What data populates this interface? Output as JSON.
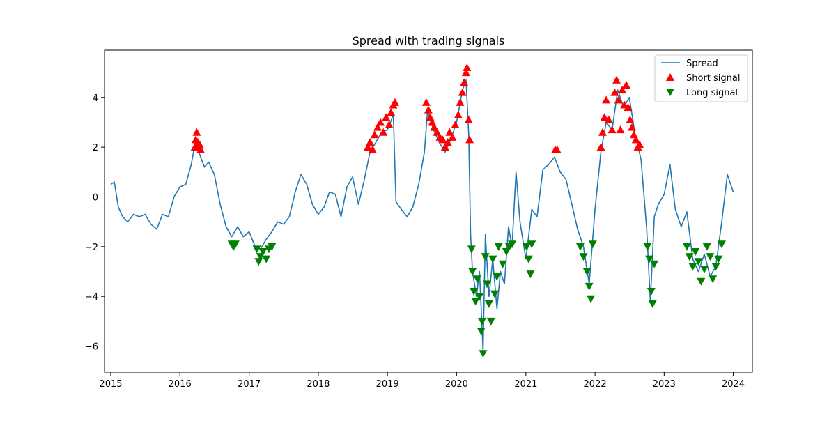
{
  "chart_data": {
    "type": "line",
    "title": "Spread with trading signals",
    "xlabel": "",
    "ylabel": "",
    "xlim": [
      "2014-11-29",
      "2024-04-11"
    ],
    "ylim": [
      -7.05,
      5.9
    ],
    "x_ticks": [
      "2015",
      "2016",
      "2017",
      "2018",
      "2019",
      "2020",
      "2021",
      "2022",
      "2023",
      "2024"
    ],
    "y_ticks": [
      -6,
      -4,
      -2,
      0,
      2,
      4
    ],
    "y_tick_labels": [
      "−6",
      "−4",
      "−2",
      "0",
      "2",
      "4"
    ],
    "grid": false,
    "legend_position": "top-right",
    "series": [
      {
        "name": "Spread",
        "color": "#1f77b4",
        "points": [
          [
            "2015-01-01",
            0.5
          ],
          [
            "2015-01-20",
            0.6
          ],
          [
            "2015-02-10",
            -0.4
          ],
          [
            "2015-03-05",
            -0.8
          ],
          [
            "2015-04-01",
            -1.0
          ],
          [
            "2015-05-01",
            -0.7
          ],
          [
            "2015-06-01",
            -0.8
          ],
          [
            "2015-07-01",
            -0.7
          ],
          [
            "2015-08-01",
            -1.1
          ],
          [
            "2015-09-01",
            -1.3
          ],
          [
            "2015-10-01",
            -0.7
          ],
          [
            "2015-11-01",
            -0.8
          ],
          [
            "2015-12-01",
            0.0
          ],
          [
            "2016-01-01",
            0.4
          ],
          [
            "2016-02-01",
            0.5
          ],
          [
            "2016-03-01",
            1.3
          ],
          [
            "2016-03-25",
            2.3
          ],
          [
            "2016-04-15",
            1.7
          ],
          [
            "2016-05-10",
            1.2
          ],
          [
            "2016-06-01",
            1.4
          ],
          [
            "2016-07-01",
            0.9
          ],
          [
            "2016-08-01",
            -0.3
          ],
          [
            "2016-09-01",
            -1.2
          ],
          [
            "2016-10-01",
            -1.6
          ],
          [
            "2016-11-01",
            -1.2
          ],
          [
            "2016-12-01",
            -1.6
          ],
          [
            "2017-01-01",
            -1.4
          ],
          [
            "2017-02-01",
            -2.0
          ],
          [
            "2017-03-01",
            -2.1
          ],
          [
            "2017-04-01",
            -1.7
          ],
          [
            "2017-05-01",
            -1.4
          ],
          [
            "2017-06-01",
            -1.0
          ],
          [
            "2017-07-01",
            -1.1
          ],
          [
            "2017-08-01",
            -0.8
          ],
          [
            "2017-09-01",
            0.2
          ],
          [
            "2017-10-01",
            0.9
          ],
          [
            "2017-11-01",
            0.5
          ],
          [
            "2017-12-01",
            -0.3
          ],
          [
            "2018-01-01",
            -0.7
          ],
          [
            "2018-02-01",
            -0.4
          ],
          [
            "2018-03-01",
            0.2
          ],
          [
            "2018-04-01",
            0.1
          ],
          [
            "2018-05-01",
            -0.8
          ],
          [
            "2018-06-01",
            0.4
          ],
          [
            "2018-07-01",
            0.8
          ],
          [
            "2018-08-01",
            -0.3
          ],
          [
            "2018-09-01",
            0.7
          ],
          [
            "2018-10-01",
            1.8
          ],
          [
            "2018-11-01",
            2.2
          ],
          [
            "2018-12-01",
            2.6
          ],
          [
            "2019-01-01",
            2.7
          ],
          [
            "2019-02-01",
            3.3
          ],
          [
            "2019-02-15",
            -0.2
          ],
          [
            "2019-03-15",
            -0.5
          ],
          [
            "2019-04-15",
            -0.8
          ],
          [
            "2019-05-15",
            -0.4
          ],
          [
            "2019-06-15",
            0.5
          ],
          [
            "2019-07-15",
            1.8
          ],
          [
            "2019-08-01",
            3.5
          ],
          [
            "2019-09-01",
            2.7
          ],
          [
            "2019-10-01",
            2.2
          ],
          [
            "2019-11-01",
            1.8
          ],
          [
            "2019-12-01",
            2.3
          ],
          [
            "2020-01-01",
            3.0
          ],
          [
            "2020-02-01",
            4.3
          ],
          [
            "2020-02-20",
            4.7
          ],
          [
            "2020-03-05",
            2.5
          ],
          [
            "2020-03-15",
            -1.5
          ],
          [
            "2020-03-25",
            -3.0
          ],
          [
            "2020-04-15",
            -4.0
          ],
          [
            "2020-05-01",
            -3.0
          ],
          [
            "2020-05-20",
            -6.2
          ],
          [
            "2020-06-01",
            -1.5
          ],
          [
            "2020-06-20",
            -4.0
          ],
          [
            "2020-07-10",
            -2.5
          ],
          [
            "2020-08-01",
            -4.5
          ],
          [
            "2020-08-20",
            -3.0
          ],
          [
            "2020-09-10",
            -3.5
          ],
          [
            "2020-10-01",
            -1.2
          ],
          [
            "2020-10-20",
            -2.0
          ],
          [
            "2020-11-10",
            1.0
          ],
          [
            "2020-12-01",
            -1.0
          ],
          [
            "2021-01-01",
            -2.5
          ],
          [
            "2021-02-01",
            -0.5
          ],
          [
            "2021-03-01",
            -0.8
          ],
          [
            "2021-04-01",
            1.1
          ],
          [
            "2021-05-01",
            1.3
          ],
          [
            "2021-06-01",
            1.6
          ],
          [
            "2021-07-01",
            1.0
          ],
          [
            "2021-08-01",
            0.7
          ],
          [
            "2021-09-01",
            -0.3
          ],
          [
            "2021-10-01",
            -1.3
          ],
          [
            "2021-11-01",
            -2.0
          ],
          [
            "2021-12-01",
            -3.5
          ],
          [
            "2022-01-01",
            -0.5
          ],
          [
            "2022-02-01",
            1.8
          ],
          [
            "2022-03-01",
            3.0
          ],
          [
            "2022-04-01",
            2.7
          ],
          [
            "2022-05-01",
            4.3
          ],
          [
            "2022-06-01",
            3.6
          ],
          [
            "2022-07-01",
            4.0
          ],
          [
            "2022-08-01",
            2.5
          ],
          [
            "2022-09-01",
            1.5
          ],
          [
            "2022-10-01",
            -1.3
          ],
          [
            "2022-10-20",
            -4.2
          ],
          [
            "2022-11-10",
            -0.8
          ],
          [
            "2022-12-01",
            -0.3
          ],
          [
            "2023-01-01",
            0.1
          ],
          [
            "2023-02-01",
            1.3
          ],
          [
            "2023-03-01",
            -0.5
          ],
          [
            "2023-04-01",
            -1.2
          ],
          [
            "2023-05-01",
            -0.6
          ],
          [
            "2023-06-01",
            -2.5
          ],
          [
            "2023-07-01",
            -3.0
          ],
          [
            "2023-08-01",
            -2.3
          ],
          [
            "2023-09-01",
            -3.2
          ],
          [
            "2023-10-01",
            -2.8
          ],
          [
            "2023-11-01",
            -1.0
          ],
          [
            "2023-12-01",
            0.9
          ],
          [
            "2024-01-01",
            0.2
          ]
        ]
      },
      {
        "name": "Short signal",
        "color": "#ff0000",
        "marker": "triangle-up",
        "points": [
          [
            "2016-03-20",
            2.0
          ],
          [
            "2016-03-25",
            2.3
          ],
          [
            "2016-03-30",
            2.6
          ],
          [
            "2016-04-05",
            2.2
          ],
          [
            "2016-04-10",
            2.0
          ],
          [
            "2016-04-15",
            2.1
          ],
          [
            "2016-04-20",
            1.9
          ],
          [
            "2018-09-20",
            2.0
          ],
          [
            "2018-10-01",
            2.2
          ],
          [
            "2018-10-15",
            1.9
          ],
          [
            "2018-10-25",
            2.5
          ],
          [
            "2018-11-10",
            2.8
          ],
          [
            "2018-11-25",
            3.0
          ],
          [
            "2018-12-10",
            2.6
          ],
          [
            "2018-12-25",
            3.2
          ],
          [
            "2019-01-10",
            2.9
          ],
          [
            "2019-01-20",
            3.4
          ],
          [
            "2019-02-01",
            3.7
          ],
          [
            "2019-02-10",
            3.8
          ],
          [
            "2019-07-25",
            3.8
          ],
          [
            "2019-08-05",
            3.5
          ],
          [
            "2019-08-15",
            3.2
          ],
          [
            "2019-08-25",
            3.0
          ],
          [
            "2019-09-05",
            2.8
          ],
          [
            "2019-09-20",
            2.6
          ],
          [
            "2019-10-05",
            2.4
          ],
          [
            "2019-10-20",
            2.3
          ],
          [
            "2019-11-01",
            2.0
          ],
          [
            "2019-11-15",
            2.2
          ],
          [
            "2019-11-25",
            2.6
          ],
          [
            "2019-12-10",
            2.4
          ],
          [
            "2019-12-25",
            2.9
          ],
          [
            "2020-01-10",
            3.3
          ],
          [
            "2020-01-20",
            3.8
          ],
          [
            "2020-02-01",
            4.2
          ],
          [
            "2020-02-10",
            4.6
          ],
          [
            "2020-02-20",
            5.0
          ],
          [
            "2020-02-25",
            5.2
          ],
          [
            "2020-03-05",
            3.1
          ],
          [
            "2020-03-10",
            2.3
          ],
          [
            "2021-06-05",
            1.9
          ],
          [
            "2021-06-15",
            1.9
          ],
          [
            "2022-02-01",
            2.0
          ],
          [
            "2022-02-10",
            2.6
          ],
          [
            "2022-02-20",
            3.2
          ],
          [
            "2022-03-01",
            3.9
          ],
          [
            "2022-03-15",
            3.1
          ],
          [
            "2022-04-01",
            2.7
          ],
          [
            "2022-04-15",
            4.2
          ],
          [
            "2022-04-25",
            4.7
          ],
          [
            "2022-05-05",
            3.9
          ],
          [
            "2022-05-15",
            2.7
          ],
          [
            "2022-05-25",
            4.3
          ],
          [
            "2022-06-05",
            3.7
          ],
          [
            "2022-06-15",
            4.5
          ],
          [
            "2022-06-25",
            3.6
          ],
          [
            "2022-07-05",
            3.1
          ],
          [
            "2022-07-15",
            2.8
          ],
          [
            "2022-07-25",
            2.5
          ],
          [
            "2022-08-05",
            2.3
          ],
          [
            "2022-08-15",
            2.0
          ],
          [
            "2022-08-25",
            2.1
          ]
        ]
      },
      {
        "name": "Long signal",
        "color": "#008000",
        "marker": "triangle-down",
        "points": [
          [
            "2016-10-01",
            -1.9
          ],
          [
            "2016-10-10",
            -2.0
          ],
          [
            "2016-10-20",
            -1.9
          ],
          [
            "2017-02-10",
            -2.1
          ],
          [
            "2017-02-20",
            -2.6
          ],
          [
            "2017-03-01",
            -2.4
          ],
          [
            "2017-03-15",
            -2.2
          ],
          [
            "2017-04-01",
            -2.5
          ],
          [
            "2017-04-15",
            -2.1
          ],
          [
            "2017-05-01",
            -2.0
          ],
          [
            "2020-03-20",
            -2.1
          ],
          [
            "2020-03-25",
            -3.0
          ],
          [
            "2020-04-01",
            -3.8
          ],
          [
            "2020-04-10",
            -4.2
          ],
          [
            "2020-04-20",
            -3.3
          ],
          [
            "2020-05-01",
            -4.0
          ],
          [
            "2020-05-10",
            -5.4
          ],
          [
            "2020-05-15",
            -5.0
          ],
          [
            "2020-05-20",
            -6.3
          ],
          [
            "2020-06-01",
            -2.4
          ],
          [
            "2020-06-10",
            -3.5
          ],
          [
            "2020-06-20",
            -4.3
          ],
          [
            "2020-07-01",
            -5.0
          ],
          [
            "2020-07-10",
            -2.5
          ],
          [
            "2020-07-20",
            -3.9
          ],
          [
            "2020-08-01",
            -3.2
          ],
          [
            "2020-08-10",
            -2.0
          ],
          [
            "2020-09-01",
            -2.7
          ],
          [
            "2020-09-20",
            -2.2
          ],
          [
            "2020-10-05",
            -2.0
          ],
          [
            "2020-10-20",
            -1.9
          ],
          [
            "2021-01-05",
            -2.0
          ],
          [
            "2021-01-15",
            -2.5
          ],
          [
            "2021-01-25",
            -3.1
          ],
          [
            "2021-02-01",
            -1.9
          ],
          [
            "2021-10-15",
            -2.0
          ],
          [
            "2021-11-01",
            -2.4
          ],
          [
            "2021-11-20",
            -3.0
          ],
          [
            "2021-12-01",
            -3.6
          ],
          [
            "2021-12-10",
            -4.1
          ],
          [
            "2021-12-20",
            -1.9
          ],
          [
            "2022-10-05",
            -2.0
          ],
          [
            "2022-10-15",
            -2.5
          ],
          [
            "2022-10-25",
            -3.8
          ],
          [
            "2022-11-01",
            -4.3
          ],
          [
            "2022-11-10",
            -2.7
          ],
          [
            "2023-05-01",
            -2.0
          ],
          [
            "2023-05-15",
            -2.4
          ],
          [
            "2023-06-01",
            -2.8
          ],
          [
            "2023-06-15",
            -2.2
          ],
          [
            "2023-07-01",
            -2.6
          ],
          [
            "2023-07-15",
            -3.4
          ],
          [
            "2023-08-01",
            -2.9
          ],
          [
            "2023-08-15",
            -2.0
          ],
          [
            "2023-09-01",
            -2.4
          ],
          [
            "2023-09-15",
            -3.3
          ],
          [
            "2023-10-01",
            -2.8
          ],
          [
            "2023-10-15",
            -2.5
          ],
          [
            "2023-11-01",
            -1.9
          ]
        ]
      }
    ]
  }
}
